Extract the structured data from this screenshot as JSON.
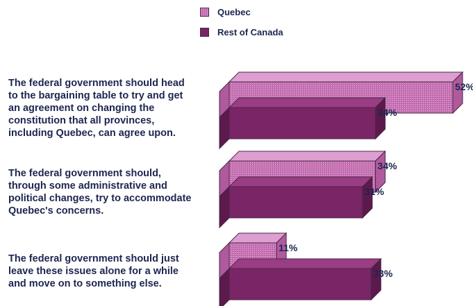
{
  "legend": [
    {
      "label": "Quebec",
      "color": "#c873b4"
    },
    {
      "label": "Rest of Canada",
      "color": "#7a2566"
    }
  ],
  "chart_data": {
    "type": "bar",
    "orientation": "horizontal",
    "categories": [
      "The federal government should head to the bargaining table to try and get an agreement on changing the constitution that all provinces, including Quebec, can agree upon.",
      "The federal government should, through some administrative and political changes, try to accommodate Quebec's concerns.",
      "The federal government should just leave these issues alone for a while and move on to something else."
    ],
    "category_lines": [
      [
        "The federal government should head",
        "to the bargaining table to try and get",
        "an agreement on changing the",
        "constitution that all provinces,",
        "including Quebec, can agree upon."
      ],
      [
        "The federal government should,",
        "through some administrative and",
        "political changes, try to accommodate",
        "Quebec's concerns."
      ],
      [
        "The federal government should just",
        "leave these issues alone for a while",
        "and move on to something else."
      ]
    ],
    "series": [
      {
        "name": "Quebec",
        "values": [
          52,
          34,
          11
        ],
        "labels": [
          "52%",
          "34%",
          "11%"
        ],
        "color": "#c873b4"
      },
      {
        "name": "Rest of Canada",
        "values": [
          34,
          31,
          33
        ],
        "labels": [
          "34%",
          "31%",
          "33%"
        ],
        "color": "#7a2566"
      }
    ],
    "unit": "%",
    "xlim": [
      0,
      52
    ],
    "style": "3d"
  }
}
